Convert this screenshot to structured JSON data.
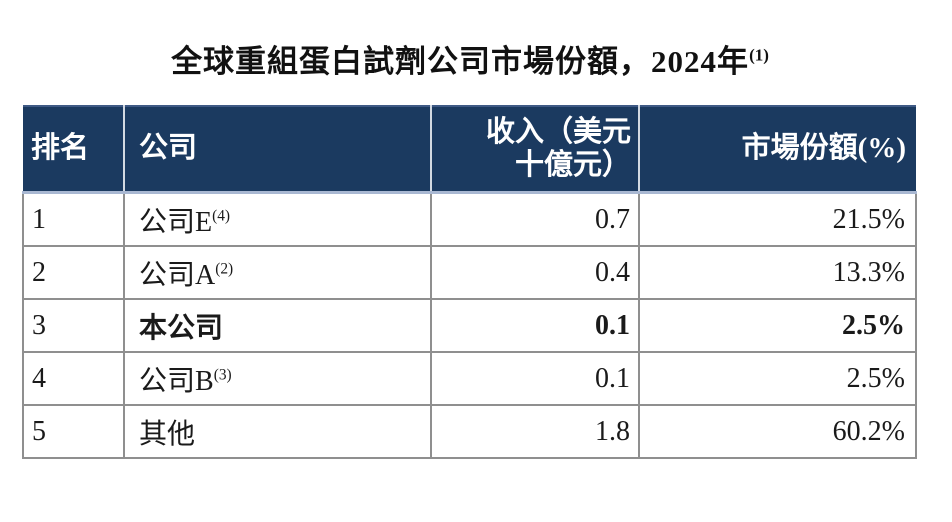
{
  "title": {
    "text": "全球重組蛋白試劑公司市場份額，2024年",
    "footnote_sup": "(1)"
  },
  "table": {
    "columns": [
      {
        "key": "rank",
        "label": "排名"
      },
      {
        "key": "company",
        "label": "公司"
      },
      {
        "key": "revenue",
        "label": "收入（美元十億元）",
        "label_lines": [
          "收入（美元",
          "十億元）"
        ]
      },
      {
        "key": "share",
        "label": "市場份額(%)"
      }
    ],
    "rows": [
      {
        "rank": "1",
        "company": "公司E",
        "company_sup": "(4)",
        "revenue": "0.7",
        "share": "21.5%",
        "emphasis": false
      },
      {
        "rank": "2",
        "company": "公司A",
        "company_sup": "(2)",
        "revenue": "0.4",
        "share": "13.3%",
        "emphasis": false
      },
      {
        "rank": "3",
        "company": "本公司",
        "company_sup": "",
        "revenue": "0.1",
        "share": "2.5%",
        "emphasis": true
      },
      {
        "rank": "4",
        "company": "公司B",
        "company_sup": "(3)",
        "revenue": "0.1",
        "share": "2.5%",
        "emphasis": false
      },
      {
        "rank": "5",
        "company": "其他",
        "company_sup": "",
        "revenue": "1.8",
        "share": "60.2%",
        "emphasis": false
      }
    ]
  },
  "colors": {
    "header_background": "#1b3a60",
    "header_text": "#ffffff",
    "header_divider": "#d3d9e2",
    "header_bottom_line": "#a9b8d2",
    "body_border": "#8f8f8f",
    "text": "#1a1a1a"
  }
}
